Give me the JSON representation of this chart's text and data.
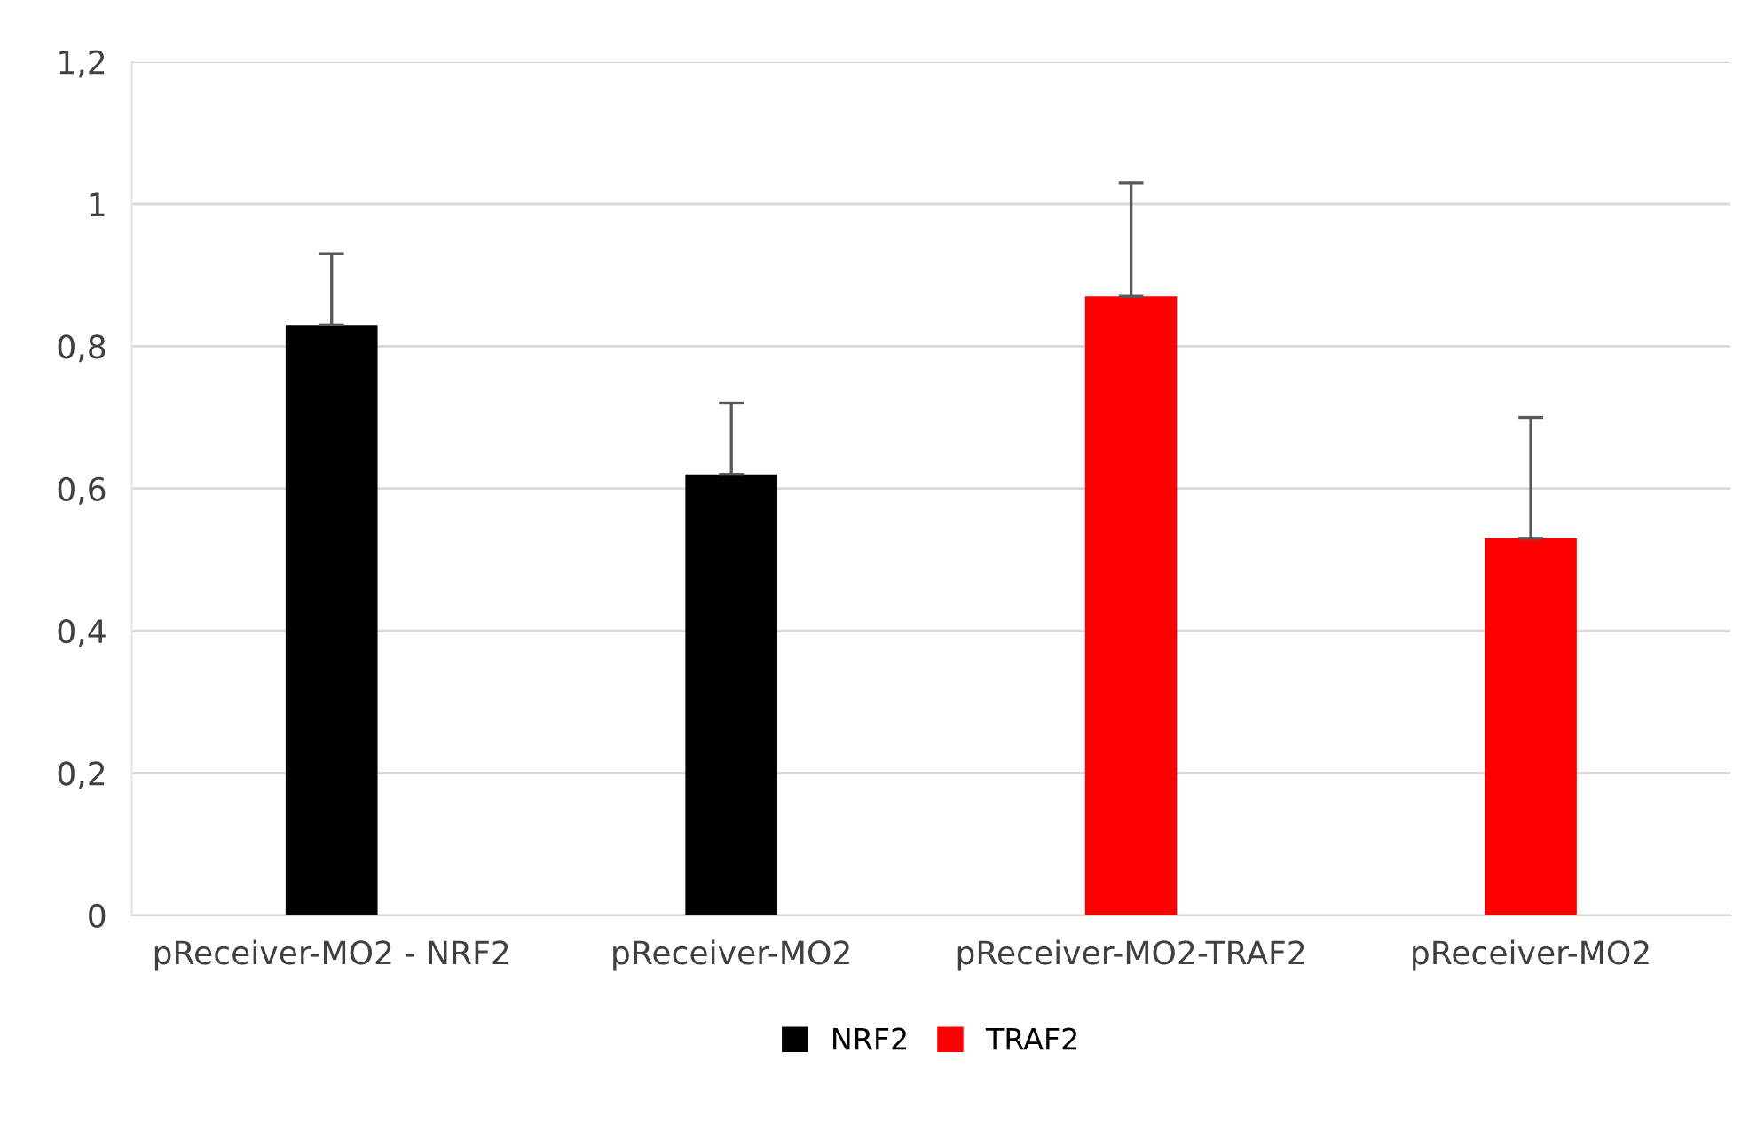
{
  "chart_data": {
    "type": "bar",
    "categories": [
      "pReceiver-MO2 - NRF2",
      "pReceiver-MO2",
      "pReceiver-MO2-TRAF2",
      "pReceiver-MO2"
    ],
    "series": [
      {
        "name": "NRF2",
        "color": "#000000",
        "values": [
          0.83,
          0.62,
          null,
          null
        ],
        "errors": [
          [
            0.83,
            0.93
          ],
          [
            0.62,
            0.72
          ],
          null,
          null
        ]
      },
      {
        "name": "TRAF2",
        "color": "#ff0000",
        "values": [
          null,
          null,
          0.87,
          0.53
        ],
        "errors": [
          null,
          null,
          [
            0.87,
            1.03
          ],
          [
            0.53,
            0.7
          ]
        ]
      }
    ],
    "ylim": [
      0,
      1.2
    ],
    "yticks": [
      {
        "value": 0,
        "label": "0"
      },
      {
        "value": 0.2,
        "label": "0,2"
      },
      {
        "value": 0.4,
        "label": "0,4"
      },
      {
        "value": 0.6,
        "label": "0,6"
      },
      {
        "value": 0.8,
        "label": "0,8"
      },
      {
        "value": 1,
        "label": "1"
      },
      {
        "value": 1.2,
        "label": "1,2"
      }
    ],
    "grid": "y",
    "legend": "bottom"
  }
}
